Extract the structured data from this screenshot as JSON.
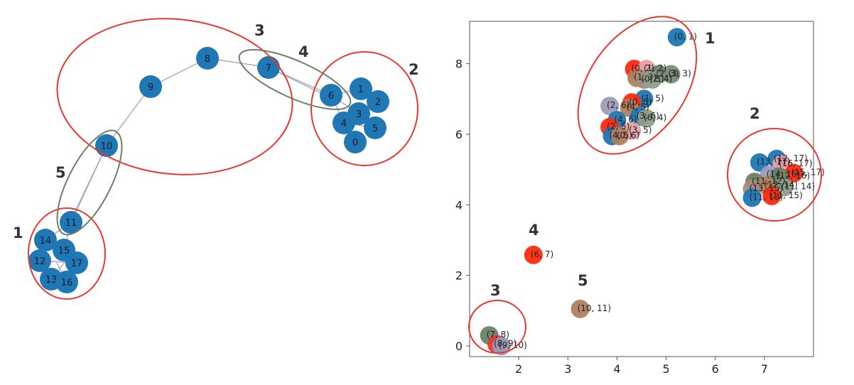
{
  "colors": {
    "node": "#1f77b4",
    "edge": "#a7a7c7",
    "red_region": "#e8382d",
    "green_region": "#6b7f66",
    "axis": "#555555"
  },
  "graph": {
    "nodes": [
      "0",
      "1",
      "2",
      "3",
      "4",
      "5",
      "6",
      "7",
      "8",
      "9",
      "10",
      "11",
      "12",
      "13",
      "14",
      "15",
      "16",
      "17"
    ],
    "region_labels": [
      "1",
      "2",
      "3",
      "4",
      "5"
    ]
  },
  "chart_data": {
    "type": "scatter",
    "title": "",
    "xlabel": "",
    "ylabel": "",
    "xlim": [
      1.0,
      8.0
    ],
    "ylim": [
      -0.3,
      9.2
    ],
    "xticks": [
      2,
      3,
      4,
      5,
      6,
      7
    ],
    "yticks": [
      0,
      2,
      4,
      6,
      8
    ],
    "region_labels": [
      "1",
      "2",
      "3",
      "4",
      "5"
    ],
    "points": [
      {
        "label": "(0, 1)",
        "x": 5.22,
        "y": 8.75,
        "color": "#1f77b4"
      },
      {
        "label": "(0, 2)",
        "x": 4.35,
        "y": 7.85,
        "color": "#ff2a10"
      },
      {
        "label": "(1, 2)",
        "x": 4.6,
        "y": 7.85,
        "color": "#e8a1a8"
      },
      {
        "label": "(1, 3)",
        "x": 4.4,
        "y": 7.6,
        "color": "#b07f5e"
      },
      {
        "label": "(0, 3)",
        "x": 4.55,
        "y": 7.55,
        "color": "#a38d7e"
      },
      {
        "label": "(2, 3)",
        "x": 4.85,
        "y": 7.7,
        "color": "#6b7f66"
      },
      {
        "label": "(2, 4)",
        "x": 4.72,
        "y": 7.55,
        "color": "#8ea088"
      },
      {
        "label": "(3, 3)",
        "x": 5.1,
        "y": 7.7,
        "color": "#7c8c78"
      },
      {
        "label": "(1, 5)",
        "x": 4.55,
        "y": 7.0,
        "color": "#1f77b4"
      },
      {
        "label": "(0, 5)",
        "x": 4.3,
        "y": 6.9,
        "color": "#ff2a10"
      },
      {
        "label": "(2, 6)",
        "x": 3.85,
        "y": 6.8,
        "color": "#9c9cb8"
      },
      {
        "label": "(4, 5)",
        "x": 4.25,
        "y": 6.75,
        "color": "#b07f5e"
      },
      {
        "label": "(3, 6)",
        "x": 4.45,
        "y": 6.5,
        "color": "#1f77b4"
      },
      {
        "label": "(6, 4)",
        "x": 4.6,
        "y": 6.45,
        "color": "#8ea088"
      },
      {
        "label": "(4, 6)",
        "x": 4.0,
        "y": 6.4,
        "color": "#1f77b4"
      },
      {
        "label": "(2, 5)",
        "x": 3.85,
        "y": 6.2,
        "color": "#ff2a10"
      },
      {
        "label": "(3, 5)",
        "x": 4.3,
        "y": 6.1,
        "color": "#e8a1a8"
      },
      {
        "label": "(4, 5)",
        "x": 3.9,
        "y": 5.95,
        "color": "#1f77b4"
      },
      {
        "label": "(0, 6)",
        "x": 4.05,
        "y": 5.95,
        "color": "#b07f5e"
      },
      {
        "label": "(13, 17)",
        "x": 6.9,
        "y": 5.2,
        "color": "#1f77b4"
      },
      {
        "label": "(12, 17)",
        "x": 7.25,
        "y": 5.3,
        "color": "#1f77b4"
      },
      {
        "label": "(16, 17)",
        "x": 7.35,
        "y": 5.15,
        "color": "#e8a1a8"
      },
      {
        "label": "(15, 17)",
        "x": 7.6,
        "y": 4.9,
        "color": "#ff2a10"
      },
      {
        "label": "(14, 16)",
        "x": 7.1,
        "y": 4.85,
        "color": "#9c9cb8"
      },
      {
        "label": "(12, 16)",
        "x": 7.3,
        "y": 4.8,
        "color": "#6b7f66"
      },
      {
        "label": "(11, 12)",
        "x": 6.8,
        "y": 4.65,
        "color": "#6b7f66"
      },
      {
        "label": "(12, 14)",
        "x": 7.05,
        "y": 4.55,
        "color": "#b07f5e"
      },
      {
        "label": "(13, 15)",
        "x": 6.75,
        "y": 4.45,
        "color": "#a38d7e"
      },
      {
        "label": "(11, 14)",
        "x": 7.4,
        "y": 4.5,
        "color": "#8ea088"
      },
      {
        "label": "(11, 15)",
        "x": 7.15,
        "y": 4.25,
        "color": "#ff2a10"
      },
      {
        "label": "(11, 13)",
        "x": 6.75,
        "y": 4.2,
        "color": "#1f77b4"
      },
      {
        "label": "(10, 11)",
        "x": 3.25,
        "y": 1.05,
        "color": "#b07f5e"
      },
      {
        "label": "(6, 7)",
        "x": 2.3,
        "y": 2.58,
        "color": "#ff2a10"
      },
      {
        "label": "(7, 8)",
        "x": 1.4,
        "y": 0.3,
        "color": "#6b7f66"
      },
      {
        "label": "(8, 9)",
        "x": 1.55,
        "y": 0.05,
        "color": "#e8382d"
      },
      {
        "label": "(9, 10)",
        "x": 1.65,
        "y": 0.0,
        "color": "#9c9cb8"
      }
    ]
  }
}
